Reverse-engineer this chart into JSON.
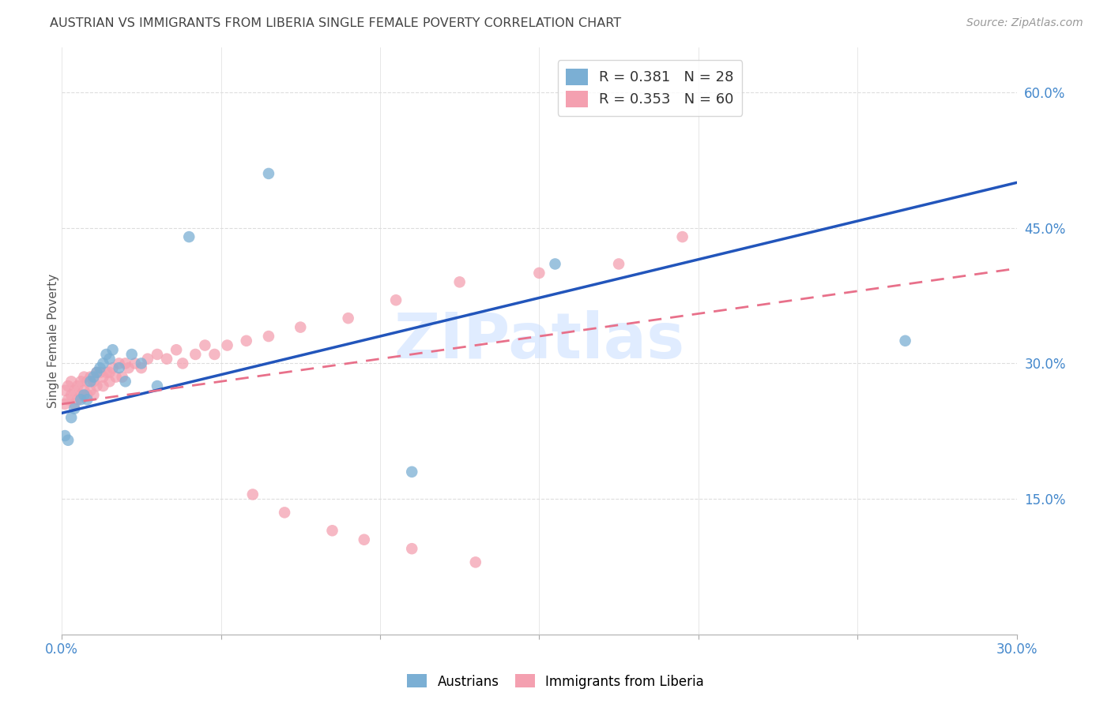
{
  "title": "AUSTRIAN VS IMMIGRANTS FROM LIBERIA SINGLE FEMALE POVERTY CORRELATION CHART",
  "source": "Source: ZipAtlas.com",
  "ylabel_label": "Single Female Poverty",
  "xlim": [
    0.0,
    0.3
  ],
  "ylim": [
    0.0,
    0.65
  ],
  "xticks": [
    0.0,
    0.05,
    0.1,
    0.15,
    0.2,
    0.25,
    0.3
  ],
  "xtick_labels": [
    "0.0%",
    "",
    "",
    "",
    "",
    "",
    "30.0%"
  ],
  "ytick_labels_right": [
    "15.0%",
    "30.0%",
    "45.0%",
    "60.0%"
  ],
  "ytick_positions_right": [
    0.15,
    0.3,
    0.45,
    0.6
  ],
  "blue_color": "#7BAFD4",
  "pink_color": "#F4A0B0",
  "blue_line_color": "#2255BB",
  "pink_line_color": "#E8708A",
  "blue_line_x": [
    0.0,
    0.3
  ],
  "blue_line_y": [
    0.245,
    0.5
  ],
  "pink_line_x": [
    0.0,
    0.3
  ],
  "pink_line_y": [
    0.255,
    0.405
  ],
  "austrians_x": [
    0.001,
    0.002,
    0.003,
    0.004,
    0.006,
    0.007,
    0.008,
    0.009,
    0.01,
    0.011,
    0.012,
    0.013,
    0.014,
    0.015,
    0.016,
    0.018,
    0.02,
    0.022,
    0.025,
    0.03,
    0.04,
    0.065,
    0.11,
    0.155,
    0.265
  ],
  "austrians_y": [
    0.22,
    0.215,
    0.24,
    0.25,
    0.26,
    0.265,
    0.26,
    0.28,
    0.285,
    0.29,
    0.295,
    0.3,
    0.31,
    0.305,
    0.315,
    0.295,
    0.28,
    0.31,
    0.3,
    0.275,
    0.44,
    0.51,
    0.18,
    0.41,
    0.325
  ],
  "liberia_x": [
    0.001,
    0.001,
    0.002,
    0.002,
    0.003,
    0.003,
    0.004,
    0.004,
    0.005,
    0.005,
    0.006,
    0.006,
    0.007,
    0.007,
    0.008,
    0.008,
    0.009,
    0.009,
    0.01,
    0.01,
    0.011,
    0.011,
    0.012,
    0.013,
    0.013,
    0.014,
    0.015,
    0.015,
    0.016,
    0.017,
    0.018,
    0.019,
    0.02,
    0.021,
    0.023,
    0.025,
    0.027,
    0.03,
    0.033,
    0.036,
    0.038,
    0.042,
    0.045,
    0.048,
    0.052,
    0.058,
    0.065,
    0.075,
    0.09,
    0.105,
    0.125,
    0.15,
    0.175,
    0.06,
    0.07,
    0.085,
    0.095,
    0.11,
    0.13,
    0.195
  ],
  "liberia_y": [
    0.27,
    0.255,
    0.275,
    0.26,
    0.28,
    0.265,
    0.27,
    0.255,
    0.275,
    0.26,
    0.28,
    0.265,
    0.285,
    0.27,
    0.28,
    0.265,
    0.285,
    0.27,
    0.28,
    0.265,
    0.29,
    0.275,
    0.29,
    0.275,
    0.285,
    0.29,
    0.29,
    0.28,
    0.295,
    0.285,
    0.3,
    0.285,
    0.3,
    0.295,
    0.3,
    0.295,
    0.305,
    0.31,
    0.305,
    0.315,
    0.3,
    0.31,
    0.32,
    0.31,
    0.32,
    0.325,
    0.33,
    0.34,
    0.35,
    0.37,
    0.39,
    0.4,
    0.41,
    0.155,
    0.135,
    0.115,
    0.105,
    0.095,
    0.08,
    0.44
  ]
}
